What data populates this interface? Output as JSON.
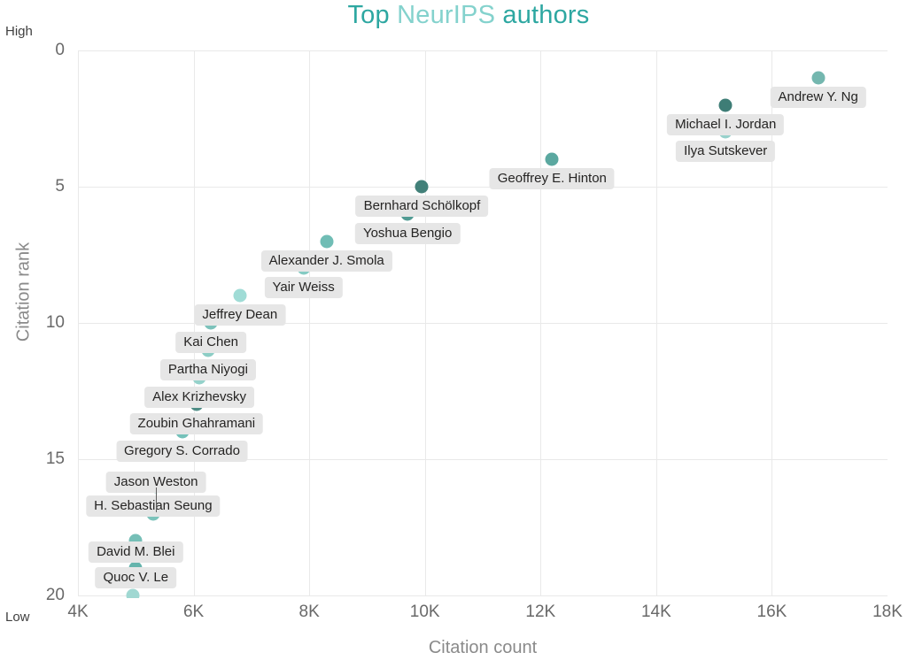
{
  "annotations": {
    "top_left": "High",
    "bottom_left": "Low"
  },
  "chart_data": {
    "type": "scatter",
    "title": "Top NeurIPS authors",
    "title_parts": {
      "prefix": "Top ",
      "highlight": "NeurIPS",
      "suffix": " authors"
    },
    "xlabel": "Citation count",
    "ylabel": "Citation rank",
    "xlim": [
      4,
      18
    ],
    "ylim": [
      0,
      20
    ],
    "y_inverted": true,
    "grid": true,
    "legend": "none",
    "x_unit": "thousands of citations",
    "x_ticks": [
      {
        "label": "4K",
        "value": 4
      },
      {
        "label": "6K",
        "value": 6
      },
      {
        "label": "8K",
        "value": 8
      },
      {
        "label": "10K",
        "value": 10
      },
      {
        "label": "12K",
        "value": 12
      },
      {
        "label": "14K",
        "value": 14
      },
      {
        "label": "16K",
        "value": 16
      },
      {
        "label": "18K",
        "value": 18
      }
    ],
    "y_ticks": [
      {
        "label": "0",
        "value": 0
      },
      {
        "label": "5",
        "value": 5
      },
      {
        "label": "10",
        "value": 10
      },
      {
        "label": "15",
        "value": 15
      },
      {
        "label": "20",
        "value": 20
      }
    ],
    "points": [
      {
        "author": "Andrew Y. Ng",
        "rank": 1,
        "citations_k": 16.8,
        "color": "#74b7af"
      },
      {
        "author": "Michael I. Jordan",
        "rank": 2,
        "citations_k": 15.2,
        "color": "#3e7d76"
      },
      {
        "author": "Ilya Sutskever",
        "rank": 3,
        "citations_k": 15.2,
        "color": "#97d1cb"
      },
      {
        "author": "Geoffrey E. Hinton",
        "rank": 4,
        "citations_k": 12.2,
        "color": "#5ba8a0"
      },
      {
        "author": "Bernhard Schölkopf",
        "rank": 5,
        "citations_k": 9.95,
        "color": "#428079"
      },
      {
        "author": "Yoshua Bengio",
        "rank": 6,
        "citations_k": 9.7,
        "color": "#519b93"
      },
      {
        "author": "Alexander J. Smola",
        "rank": 7,
        "citations_k": 8.3,
        "color": "#70bdb5"
      },
      {
        "author": "Yair Weiss",
        "rank": 8,
        "citations_k": 7.9,
        "color": "#85cbc3"
      },
      {
        "author": "Jeffrey Dean",
        "rank": 9,
        "citations_k": 6.8,
        "color": "#a0dcd6"
      },
      {
        "author": "Kai Chen",
        "rank": 10,
        "citations_k": 6.3,
        "color": "#7cc2bb"
      },
      {
        "author": "Partha Niyogi",
        "rank": 11,
        "citations_k": 6.25,
        "color": "#8ccdc5"
      },
      {
        "author": "Alex Krizhevsky",
        "rank": 12,
        "citations_k": 6.1,
        "color": "#95d2cb"
      },
      {
        "author": "Zoubin Ghahramani",
        "rank": 13,
        "citations_k": 6.05,
        "color": "#4e8c85"
      },
      {
        "author": "Gregory S. Corrado",
        "rank": 14,
        "citations_k": 5.8,
        "color": "#74c1b9"
      },
      {
        "author": "Jason Weston",
        "rank": 16,
        "citations_k": 5.35,
        "color": "#8ecac3",
        "label_dy": -5
      },
      {
        "author": "H. Sebastian Seung",
        "rank": 17,
        "citations_k": 5.3,
        "color": "#7cc3bb",
        "label_dy": -9
      },
      {
        "author": "David M. Blei",
        "rank": 18,
        "citations_k": 5.0,
        "color": "#76bfb7",
        "label_dy": 13
      },
      {
        "author": "Quoc V. Le",
        "rank": 19,
        "citations_k": 5.0,
        "color": "#65b4ac",
        "label_dy": 11
      },
      {
        "author": "",
        "rank": 20,
        "citations_k": 4.95,
        "color": "#a0d8d2"
      }
    ],
    "leader_lines": [
      {
        "x_k": 5.35,
        "from_rank": 16.05,
        "to_rank": 16.95
      }
    ]
  }
}
